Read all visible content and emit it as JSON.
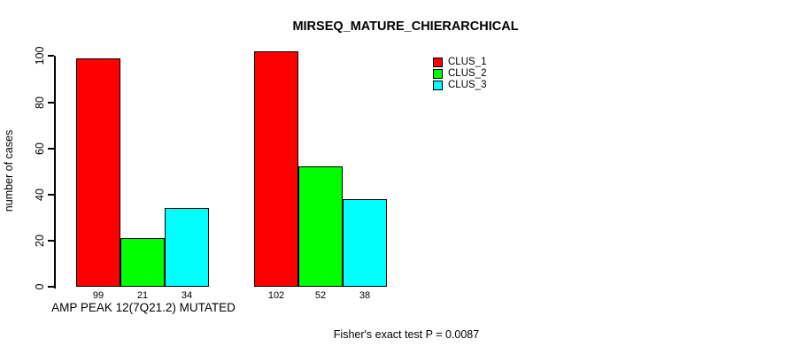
{
  "chart_data": {
    "type": "bar",
    "title": "MIRSEQ_MATURE_CHIERARCHICAL",
    "ylabel": "number of cases",
    "xlabel": "",
    "ylim": [
      0,
      100
    ],
    "yticks": [
      0,
      20,
      40,
      60,
      80,
      100
    ],
    "grid": false,
    "legend_position": "top-right",
    "series": [
      {
        "name": "CLUS_1",
        "color": "#FF0000"
      },
      {
        "name": "CLUS_2",
        "color": "#00FF00"
      },
      {
        "name": "CLUS_3",
        "color": "#00FFFF"
      }
    ],
    "groups": [
      {
        "label": "AMP PEAK 12(7Q21.2) MUTATED",
        "values": [
          99,
          21,
          34
        ]
      },
      {
        "label": "",
        "values": [
          102,
          52,
          38
        ]
      }
    ],
    "bar_value_labels": [
      99,
      21,
      34,
      102,
      52,
      38
    ],
    "annotation": "Fisher's exact test P = 0.0087"
  }
}
